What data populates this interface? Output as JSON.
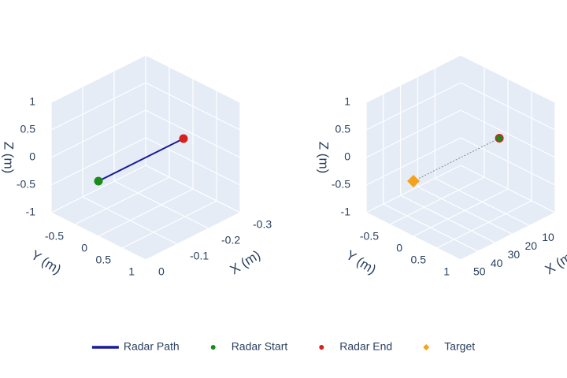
{
  "chart_data": [
    {
      "type": "scatter3d",
      "xlabel": "X (m)",
      "ylabel": "Y (m)",
      "zlabel": "Z (m)",
      "xlim": [
        0,
        -0.3
      ],
      "xticks": [
        -0.3,
        -0.2,
        -0.1,
        0
      ],
      "ylim": [
        1,
        -1
      ],
      "yticks": [
        -0.5,
        0,
        0.5,
        1
      ],
      "zlim": [
        -1,
        1
      ],
      "zticks": [
        -1,
        -0.5,
        0,
        0.5,
        1
      ],
      "series": [
        {
          "name": "Radar Path",
          "mode": "lines",
          "color": "#1a1a9e",
          "x": [
            0,
            -0.27
          ],
          "y": [
            0,
            0
          ],
          "z": [
            0,
            0
          ]
        },
        {
          "name": "Radar Start",
          "mode": "markers",
          "color": "#1a8a1a",
          "x": [
            0
          ],
          "y": [
            0
          ],
          "z": [
            0
          ]
        },
        {
          "name": "Radar End",
          "mode": "markers",
          "color": "#d62020",
          "x": [
            -0.27
          ],
          "y": [
            0
          ],
          "z": [
            0
          ]
        }
      ]
    },
    {
      "type": "scatter3d",
      "xlabel": "X (m)",
      "ylabel": "Y (m)",
      "zlabel": "Z (m)",
      "xlim": [
        50,
        -5
      ],
      "xticks": [
        10,
        20,
        30,
        40,
        50
      ],
      "ylim": [
        1,
        -1
      ],
      "yticks": [
        -0.5,
        0,
        0.5,
        1
      ],
      "zlim": [
        -1,
        1
      ],
      "zticks": [
        -1,
        -0.5,
        0,
        0.5,
        1
      ],
      "series": [
        {
          "mode": "lines",
          "dash": true,
          "color": "#888888",
          "x": [
            0,
            50
          ],
          "y": [
            0,
            0
          ],
          "z": [
            0,
            0
          ]
        },
        {
          "name": "Radar End",
          "mode": "markers",
          "color": "#d62020",
          "x": [
            0
          ],
          "y": [
            0
          ],
          "z": [
            0
          ]
        },
        {
          "name": "Radar Start",
          "mode": "markers",
          "color": "#1a8a1a",
          "x": [
            0
          ],
          "y": [
            0
          ],
          "z": [
            0
          ]
        },
        {
          "name": "Target",
          "mode": "markers",
          "symbol": "diamond",
          "color": "#f5a21b",
          "x": [
            50
          ],
          "y": [
            0
          ],
          "z": [
            0
          ]
        }
      ]
    }
  ]
}
